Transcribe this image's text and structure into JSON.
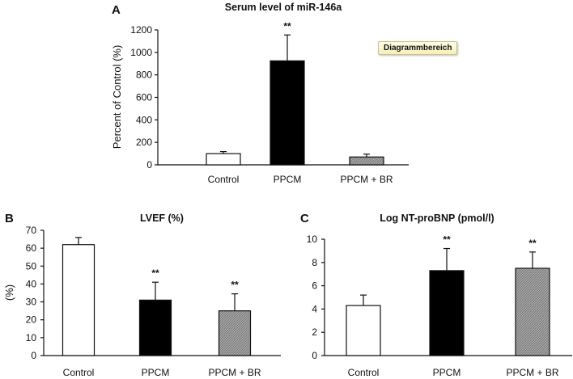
{
  "colors": {
    "Control": "#ffffff",
    "PPCM": "#000000",
    "PPCM + BR": "#9a9a9a",
    "axis": "#111111"
  },
  "chart_data": [
    {
      "panel": "A",
      "type": "bar",
      "title": "Serum level of miR-146a",
      "ylabel": "Percent of Control (%)",
      "xlabel": "",
      "ylim": [
        0,
        1200
      ],
      "yticks": [
        0,
        200,
        400,
        600,
        800,
        1000,
        1200
      ],
      "categories": [
        "Control",
        "PPCM",
        "PPCM + BR"
      ],
      "values": [
        100,
        925,
        70
      ],
      "errors": [
        18,
        230,
        25
      ],
      "significance": [
        "",
        "**",
        ""
      ],
      "tooltip": "Diagrammbereich"
    },
    {
      "panel": "B",
      "type": "bar",
      "title": "LVEF (%)",
      "ylabel": "(%)",
      "xlabel": "",
      "ylim": [
        0,
        70
      ],
      "yticks": [
        0,
        10,
        20,
        30,
        40,
        50,
        60,
        70
      ],
      "categories": [
        "Control",
        "PPCM",
        "PPCM + BR"
      ],
      "values": [
        62,
        31,
        25
      ],
      "errors": [
        4,
        10,
        9.5
      ],
      "significance": [
        "",
        "**",
        "**"
      ]
    },
    {
      "panel": "C",
      "type": "bar",
      "title": "Log NT-proBNP (pmol/l)",
      "ylabel": "",
      "xlabel": "",
      "ylim": [
        0,
        10
      ],
      "yticks": [
        0,
        2,
        4,
        6,
        8,
        10
      ],
      "categories": [
        "Control",
        "PPCM",
        "PPCM + BR"
      ],
      "values": [
        4.3,
        7.3,
        7.5
      ],
      "errors": [
        0.9,
        1.9,
        1.4
      ],
      "significance": [
        "",
        "**",
        "**"
      ]
    }
  ]
}
